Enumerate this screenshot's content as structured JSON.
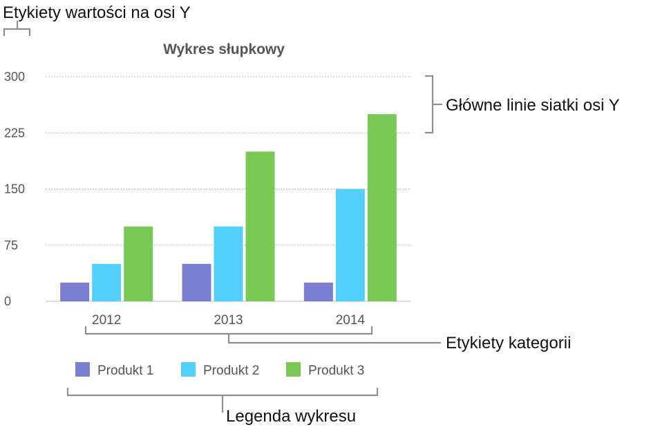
{
  "chart_data": {
    "type": "bar",
    "title": "Wykres słupkowy",
    "categories": [
      "2012",
      "2013",
      "2014"
    ],
    "series": [
      {
        "name": "Produkt 1",
        "values": [
          25,
          50,
          25
        ],
        "color": "#7a7fd2"
      },
      {
        "name": "Produkt 2",
        "values": [
          50,
          100,
          150
        ],
        "color": "#52d0fb"
      },
      {
        "name": "Produkt 3",
        "values": [
          100,
          200,
          250
        ],
        "color": "#7ac957"
      }
    ],
    "ylim": [
      0,
      300
    ],
    "yticks": [
      "0",
      "75",
      "150",
      "225",
      "300"
    ],
    "grid": true,
    "legend_position": "bottom"
  },
  "annotations": {
    "y_value_labels": "Etykiety wartości na osi Y",
    "major_gridlines": "Główne linie siatki osi Y",
    "category_labels": "Etykiety kategorii",
    "legend": "Legenda wykresu"
  }
}
